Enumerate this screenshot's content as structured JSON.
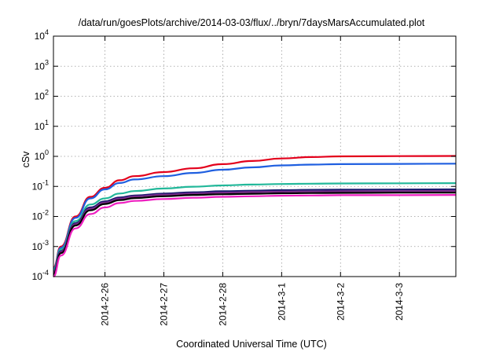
{
  "chart_data": {
    "type": "line",
    "title": "/data/run/goesPlots/archive/2014-03-03/flux/../bryn/7daysMarsAccumulated.plot",
    "xlabel": "Coordinated Universal Time (UTC)",
    "ylabel": "cSv",
    "yscale": "log",
    "ylim": [
      0.0001,
      10000
    ],
    "yticks": [
      {
        "base": "10",
        "exp": "-4",
        "value": 0.0001
      },
      {
        "base": "10",
        "exp": "-3",
        "value": 0.001
      },
      {
        "base": "10",
        "exp": "-2",
        "value": 0.01
      },
      {
        "base": "10",
        "exp": "-1",
        "value": 0.1
      },
      {
        "base": "10",
        "exp": "0",
        "value": 1
      },
      {
        "base": "10",
        "exp": "1",
        "value": 10
      },
      {
        "base": "10",
        "exp": "2",
        "value": 100
      },
      {
        "base": "10",
        "exp": "3",
        "value": 1000
      },
      {
        "base": "10",
        "exp": "4",
        "value": 10000
      }
    ],
    "xlim": [
      "2014-02-25 03:00",
      "2014-03-03 23:00"
    ],
    "xticks": [
      "2014-2-26",
      "2014-2-27",
      "2014-2-28",
      "2014-3-1",
      "2014-3-2",
      "2014-3-3"
    ],
    "grid": true,
    "series": [
      {
        "color": "#e3001b",
        "x": [
          "2014-02-25 03:00",
          "2014-02-25 06:00",
          "2014-02-25 12:00",
          "2014-02-25 18:00",
          "2014-02-26 00:00",
          "2014-02-26 06:00",
          "2014-02-26 12:00",
          "2014-02-27 00:00",
          "2014-02-27 12:00",
          "2014-02-28 00:00",
          "2014-02-28 12:00",
          "2014-03-01 00:00",
          "2014-03-01 12:00",
          "2014-03-02 00:00",
          "2014-03-03 00:00",
          "2014-03-03 23:00"
        ],
        "y": [
          0.0002,
          0.001,
          0.01,
          0.045,
          0.09,
          0.16,
          0.22,
          0.3,
          0.4,
          0.55,
          0.7,
          0.85,
          0.95,
          1.0,
          1.02,
          1.03
        ]
      },
      {
        "color": "#1f5fe0",
        "x": [
          "2014-02-25 03:00",
          "2014-02-25 06:00",
          "2014-02-25 12:00",
          "2014-02-25 18:00",
          "2014-02-26 00:00",
          "2014-02-26 06:00",
          "2014-02-26 12:00",
          "2014-02-27 00:00",
          "2014-02-27 12:00",
          "2014-02-28 00:00",
          "2014-02-28 12:00",
          "2014-03-01 00:00",
          "2014-03-01 12:00",
          "2014-03-02 00:00",
          "2014-03-03 00:00",
          "2014-03-03 23:00"
        ],
        "y": [
          0.00018,
          0.0009,
          0.009,
          0.04,
          0.08,
          0.13,
          0.17,
          0.22,
          0.28,
          0.36,
          0.43,
          0.5,
          0.53,
          0.55,
          0.56,
          0.57
        ]
      },
      {
        "color": "#22b89a",
        "x": [
          "2014-02-25 03:00",
          "2014-02-25 06:00",
          "2014-02-25 12:00",
          "2014-02-25 18:00",
          "2014-02-26 00:00",
          "2014-02-26 06:00",
          "2014-02-26 12:00",
          "2014-02-27 00:00",
          "2014-02-27 12:00",
          "2014-02-28 00:00",
          "2014-02-28 12:00",
          "2014-03-01 00:00",
          "2014-03-01 12:00",
          "2014-03-02 00:00",
          "2014-03-03 00:00",
          "2014-03-03 23:00"
        ],
        "y": [
          0.00016,
          0.0008,
          0.007,
          0.025,
          0.04,
          0.058,
          0.07,
          0.085,
          0.098,
          0.108,
          0.115,
          0.12,
          0.123,
          0.125,
          0.127,
          0.128
        ]
      },
      {
        "color": "#1a1a6e",
        "x": [
          "2014-02-25 03:00",
          "2014-02-25 06:00",
          "2014-02-25 12:00",
          "2014-02-25 18:00",
          "2014-02-26 00:00",
          "2014-02-26 06:00",
          "2014-02-26 12:00",
          "2014-02-27 00:00",
          "2014-02-27 12:00",
          "2014-02-28 00:00",
          "2014-02-28 12:00",
          "2014-03-01 00:00",
          "2014-03-01 12:00",
          "2014-03-02 00:00",
          "2014-03-03 00:00",
          "2014-03-03 23:00"
        ],
        "y": [
          0.00014,
          0.0007,
          0.006,
          0.02,
          0.032,
          0.043,
          0.05,
          0.058,
          0.064,
          0.069,
          0.072,
          0.075,
          0.077,
          0.078,
          0.079,
          0.08
        ]
      },
      {
        "color": "#7a2a8a",
        "x": [
          "2014-02-25 03:00",
          "2014-02-25 06:00",
          "2014-02-25 12:00",
          "2014-02-25 18:00",
          "2014-02-26 00:00",
          "2014-02-26 06:00",
          "2014-02-26 12:00",
          "2014-02-27 00:00",
          "2014-02-27 12:00",
          "2014-02-28 00:00",
          "2014-02-28 12:00",
          "2014-03-01 00:00",
          "2014-03-01 12:00",
          "2014-03-02 00:00",
          "2014-03-03 00:00",
          "2014-03-03 23:00"
        ],
        "y": [
          0.00013,
          0.00065,
          0.0055,
          0.018,
          0.029,
          0.039,
          0.046,
          0.053,
          0.058,
          0.062,
          0.065,
          0.067,
          0.068,
          0.069,
          0.07,
          0.071
        ]
      },
      {
        "color": "#000000",
        "x": [
          "2014-02-25 03:00",
          "2014-02-25 06:00",
          "2014-02-25 12:00",
          "2014-02-25 18:00",
          "2014-02-26 00:00",
          "2014-02-26 06:00",
          "2014-02-26 12:00",
          "2014-02-27 00:00",
          "2014-02-27 12:00",
          "2014-02-28 00:00",
          "2014-02-28 12:00",
          "2014-03-01 00:00",
          "2014-03-01 12:00",
          "2014-03-02 00:00",
          "2014-03-03 00:00",
          "2014-03-03 23:00"
        ],
        "y": [
          0.00012,
          0.0006,
          0.005,
          0.016,
          0.026,
          0.035,
          0.041,
          0.047,
          0.052,
          0.055,
          0.057,
          0.059,
          0.06,
          0.061,
          0.062,
          0.062
        ]
      },
      {
        "color": "#ee1fc0",
        "x": [
          "2014-02-25 03:00",
          "2014-02-25 06:00",
          "2014-02-25 12:00",
          "2014-02-25 18:00",
          "2014-02-26 00:00",
          "2014-02-26 06:00",
          "2014-02-26 12:00",
          "2014-02-27 00:00",
          "2014-02-27 12:00",
          "2014-02-28 00:00",
          "2014-02-28 12:00",
          "2014-03-01 00:00",
          "2014-03-01 12:00",
          "2014-03-02 00:00",
          "2014-03-03 00:00",
          "2014-03-03 23:00"
        ],
        "y": [
          0.0001,
          0.0005,
          0.004,
          0.012,
          0.02,
          0.028,
          0.033,
          0.038,
          0.042,
          0.045,
          0.047,
          0.049,
          0.05,
          0.051,
          0.051,
          0.052
        ]
      }
    ]
  }
}
